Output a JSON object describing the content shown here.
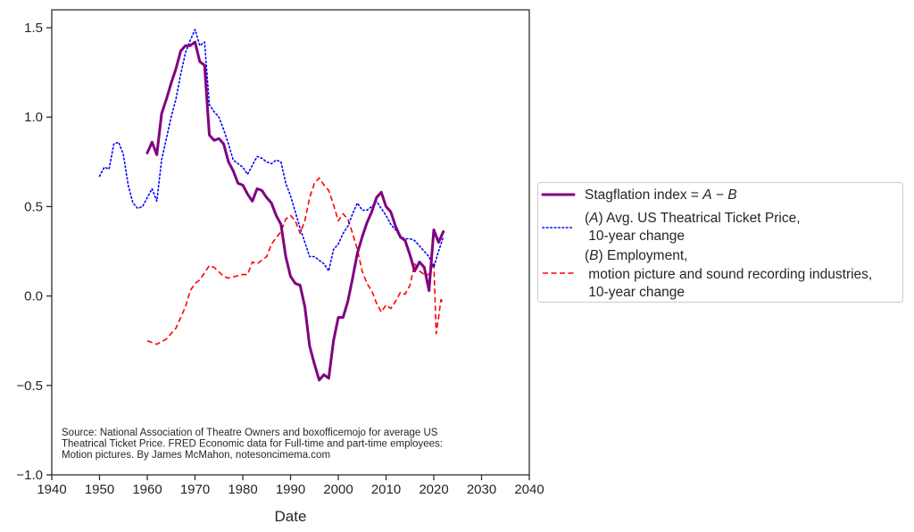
{
  "chart_data": {
    "type": "line",
    "title": "",
    "xlabel": "Date",
    "ylabel": "",
    "xlim": [
      1940,
      2040
    ],
    "ylim": [
      -1.0,
      1.6
    ],
    "xticks": [
      1940,
      1950,
      1960,
      1970,
      1980,
      1990,
      2000,
      2010,
      2020,
      2030,
      2040
    ],
    "xtick_labels": [
      "1940",
      "1950",
      "1960",
      "1970",
      "1980",
      "1990",
      "2000",
      "2010",
      "2020",
      "2030",
      "2040"
    ],
    "yticks": [
      -1.0,
      -0.5,
      0.0,
      0.5,
      1.0,
      1.5
    ],
    "ytick_labels": [
      "−1.0",
      "−0.5",
      "0.0",
      "0.5",
      "1.0",
      "1.5"
    ],
    "grid": false,
    "legend_position": "right-outside",
    "annotation": {
      "lines": [
        "Source: National Association of Theatre Owners and boxofficemojo for average US",
        "Theatrical Ticket Price. FRED Economic data for Full-time and part-time employees:",
        "Motion pictures. By James McMahon, notesoncimema.com"
      ],
      "position": "bottom-left"
    },
    "series": [
      {
        "name": "Stagflation index = A − B",
        "legend_lines": [
          [
            {
              "t": "Stagflation index = ",
              "i": false
            },
            {
              "t": "A",
              "i": true
            },
            {
              "t": " − ",
              "i": false
            },
            {
              "t": "B",
              "i": true
            }
          ]
        ],
        "color": "#800080",
        "style": "solid",
        "x": [
          1960,
          1961,
          1962,
          1963,
          1964,
          1965,
          1966,
          1967,
          1968,
          1969,
          1970,
          1971,
          1972,
          1973,
          1974,
          1975,
          1976,
          1977,
          1978,
          1979,
          1980,
          1981,
          1982,
          1983,
          1984,
          1985,
          1986,
          1987,
          1988,
          1989,
          1990,
          1991,
          1992,
          1993,
          1994,
          1995,
          1996,
          1997,
          1998,
          1999,
          2000,
          2001,
          2002,
          2003,
          2004,
          2005,
          2006,
          2007,
          2008,
          2009,
          2010,
          2011,
          2012,
          2013,
          2014,
          2015,
          2016,
          2017,
          2018,
          2019,
          2020,
          2021,
          2022
        ],
        "values": [
          0.8,
          0.86,
          0.79,
          1.02,
          1.1,
          1.19,
          1.27,
          1.37,
          1.4,
          1.4,
          1.42,
          1.31,
          1.29,
          0.9,
          0.87,
          0.88,
          0.85,
          0.75,
          0.7,
          0.63,
          0.62,
          0.57,
          0.53,
          0.6,
          0.59,
          0.55,
          0.52,
          0.45,
          0.4,
          0.22,
          0.11,
          0.07,
          0.06,
          -0.06,
          -0.28,
          -0.38,
          -0.47,
          -0.44,
          -0.46,
          -0.25,
          -0.12,
          -0.12,
          -0.03,
          0.1,
          0.24,
          0.33,
          0.41,
          0.47,
          0.55,
          0.58,
          0.5,
          0.47,
          0.39,
          0.33,
          0.31,
          0.23,
          0.14,
          0.19,
          0.16,
          0.03,
          0.37,
          0.3,
          0.36
        ]
      },
      {
        "name": "(A) Avg. US Theatrical Ticket Price, 10-year change",
        "legend_lines": [
          [
            {
              "t": "(",
              "i": false
            },
            {
              "t": "A",
              "i": true
            },
            {
              "t": ") Avg. US Theatrical Ticket Price,",
              "i": false
            }
          ],
          [
            {
              "t": " 10-year change",
              "i": false
            }
          ]
        ],
        "color": "#0000ff",
        "style": "dotted",
        "x": [
          1950,
          1951,
          1952,
          1953,
          1954,
          1955,
          1956,
          1957,
          1958,
          1959,
          1960,
          1961,
          1962,
          1963,
          1964,
          1965,
          1966,
          1967,
          1968,
          1969,
          1970,
          1971,
          1972,
          1973,
          1974,
          1975,
          1976,
          1977,
          1978,
          1979,
          1980,
          1981,
          1982,
          1983,
          1984,
          1985,
          1986,
          1987,
          1988,
          1989,
          1990,
          1991,
          1992,
          1993,
          1994,
          1995,
          1996,
          1997,
          1998,
          1999,
          2000,
          2001,
          2002,
          2003,
          2004,
          2005,
          2006,
          2007,
          2008,
          2009,
          2010,
          2011,
          2012,
          2013,
          2014,
          2015,
          2016,
          2017,
          2018,
          2019,
          2020,
          2021,
          2022
        ],
        "values": [
          0.67,
          0.72,
          0.71,
          0.85,
          0.86,
          0.79,
          0.62,
          0.52,
          0.49,
          0.5,
          0.55,
          0.6,
          0.53,
          0.76,
          0.88,
          1.0,
          1.1,
          1.24,
          1.36,
          1.43,
          1.49,
          1.4,
          1.42,
          1.07,
          1.03,
          1.0,
          0.93,
          0.85,
          0.76,
          0.74,
          0.72,
          0.68,
          0.73,
          0.78,
          0.77,
          0.75,
          0.74,
          0.76,
          0.75,
          0.63,
          0.56,
          0.47,
          0.38,
          0.3,
          0.22,
          0.22,
          0.2,
          0.18,
          0.14,
          0.26,
          0.29,
          0.35,
          0.39,
          0.46,
          0.52,
          0.48,
          0.48,
          0.5,
          0.53,
          0.49,
          0.45,
          0.4,
          0.37,
          0.33,
          0.32,
          0.32,
          0.31,
          0.28,
          0.25,
          0.22,
          0.16,
          0.25,
          0.33
        ]
      },
      {
        "name": "(B) Employment, motion picture and sound recording industries, 10-year change",
        "legend_lines": [
          [
            {
              "t": "(",
              "i": false
            },
            {
              "t": "B",
              "i": true
            },
            {
              "t": ") Employment,",
              "i": false
            }
          ],
          [
            {
              "t": " motion picture and sound recording industries,",
              "i": false
            }
          ],
          [
            {
              "t": " 10-year change",
              "i": false
            }
          ]
        ],
        "color": "#ff0000",
        "style": "dashed",
        "x": [
          1960,
          1962,
          1964,
          1966,
          1968,
          1969,
          1970,
          1971,
          1973,
          1974,
          1976,
          1977,
          1980,
          1981,
          1982,
          1983,
          1985,
          1986,
          1988,
          1989,
          1990,
          1991,
          1992,
          1993,
          1994,
          1995,
          1996,
          1997,
          1998,
          1999,
          2000,
          2001,
          2002,
          2003,
          2004,
          2005,
          2006,
          2007,
          2008,
          2009,
          2010,
          2011,
          2012,
          2013,
          2014,
          2015,
          2016,
          2017,
          2018,
          2019,
          2020,
          2020.5,
          2021,
          2021.5,
          2022
        ],
        "values": [
          -0.25,
          -0.27,
          -0.24,
          -0.18,
          -0.06,
          0.03,
          0.07,
          0.09,
          0.17,
          0.16,
          0.11,
          0.1,
          0.12,
          0.12,
          0.19,
          0.18,
          0.22,
          0.29,
          0.36,
          0.43,
          0.45,
          0.42,
          0.35,
          0.42,
          0.55,
          0.63,
          0.66,
          0.62,
          0.59,
          0.51,
          0.42,
          0.46,
          0.43,
          0.35,
          0.26,
          0.14,
          0.07,
          0.03,
          -0.04,
          -0.09,
          -0.05,
          -0.07,
          -0.03,
          0.02,
          0.01,
          0.06,
          0.18,
          0.14,
          0.12,
          0.12,
          0.19,
          -0.21,
          -0.12,
          -0.02,
          -0.04
        ]
      }
    ]
  }
}
